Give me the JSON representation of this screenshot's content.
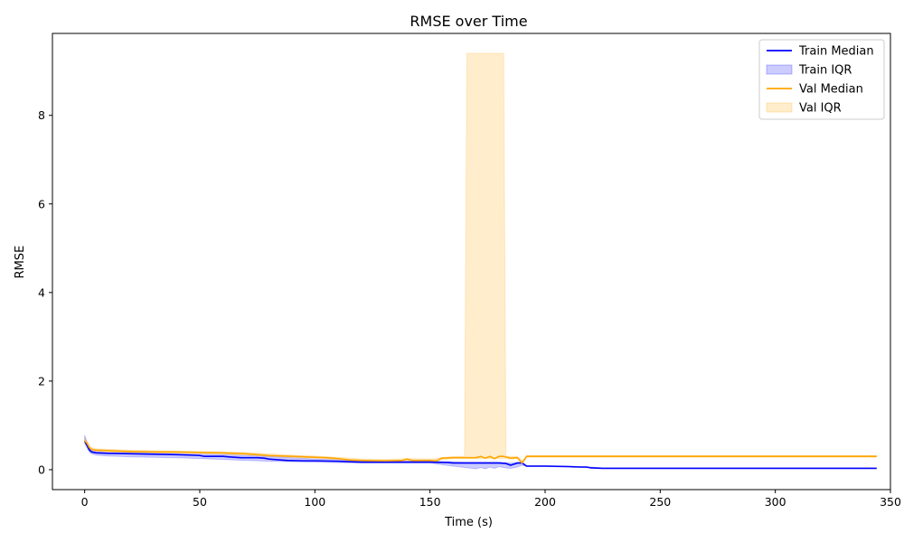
{
  "chart_data": {
    "type": "line",
    "title": "RMSE over Time",
    "xlabel": "Time (s)",
    "ylabel": "RMSE",
    "xlim": [
      -14,
      350
    ],
    "ylim": [
      -0.45,
      9.85
    ],
    "xticks": [
      0,
      50,
      100,
      150,
      200,
      250,
      300,
      350
    ],
    "yticks": [
      0,
      2,
      4,
      6,
      8
    ],
    "grid": false,
    "legend_position": "top-right",
    "series": [
      {
        "name": "Train Median",
        "kind": "line",
        "color": "#0000ff",
        "x": [
          0,
          1,
          2,
          3,
          5,
          10,
          20,
          30,
          40,
          45,
          50,
          52,
          60,
          65,
          68,
          75,
          78,
          80,
          85,
          88,
          95,
          100,
          110,
          115,
          120,
          125,
          130,
          138,
          140,
          150,
          158,
          160,
          165,
          170,
          175,
          180,
          183,
          185,
          188,
          190,
          192,
          200,
          210,
          215,
          218,
          220,
          225,
          250,
          300,
          344
        ],
        "y": [
          0.65,
          0.55,
          0.45,
          0.4,
          0.38,
          0.37,
          0.36,
          0.35,
          0.34,
          0.33,
          0.32,
          0.3,
          0.3,
          0.28,
          0.27,
          0.27,
          0.26,
          0.24,
          0.22,
          0.21,
          0.2,
          0.2,
          0.19,
          0.18,
          0.17,
          0.17,
          0.17,
          0.17,
          0.17,
          0.17,
          0.16,
          0.15,
          0.15,
          0.15,
          0.15,
          0.15,
          0.14,
          0.1,
          0.15,
          0.15,
          0.08,
          0.08,
          0.07,
          0.06,
          0.06,
          0.04,
          0.03,
          0.03,
          0.03,
          0.03
        ]
      },
      {
        "name": "Train IQR",
        "kind": "band",
        "color": "#0000ff",
        "x": [
          0,
          1,
          2,
          3,
          5,
          10,
          20,
          30,
          40,
          50,
          60,
          70,
          80,
          90,
          100,
          110,
          120,
          130,
          140,
          150,
          160,
          165,
          170,
          172,
          174,
          176,
          178,
          180,
          183,
          185,
          188,
          190,
          192,
          200,
          210,
          220,
          225,
          250,
          300,
          344
        ],
        "lower": [
          0.6,
          0.5,
          0.4,
          0.36,
          0.33,
          0.31,
          0.29,
          0.28,
          0.27,
          0.25,
          0.23,
          0.21,
          0.19,
          0.18,
          0.17,
          0.16,
          0.15,
          0.15,
          0.15,
          0.15,
          0.08,
          0.05,
          0.02,
          0.05,
          0.02,
          0.06,
          0.03,
          0.07,
          0.04,
          0.03,
          0.06,
          0.1,
          0.07,
          0.07,
          0.06,
          0.04,
          0.03,
          0.03,
          0.03,
          0.03
        ],
        "upper": [
          0.78,
          0.62,
          0.5,
          0.44,
          0.41,
          0.39,
          0.38,
          0.37,
          0.36,
          0.35,
          0.34,
          0.32,
          0.3,
          0.27,
          0.24,
          0.22,
          0.2,
          0.19,
          0.19,
          0.19,
          0.18,
          0.17,
          0.17,
          0.17,
          0.17,
          0.17,
          0.17,
          0.17,
          0.16,
          0.15,
          0.17,
          0.16,
          0.09,
          0.09,
          0.08,
          0.06,
          0.04,
          0.04,
          0.04,
          0.04
        ]
      },
      {
        "name": "Val Median",
        "kind": "line",
        "color": "#ffa500",
        "x": [
          0,
          1,
          2,
          3,
          5,
          10,
          20,
          30,
          40,
          50,
          60,
          65,
          70,
          75,
          80,
          90,
          100,
          105,
          110,
          115,
          120,
          130,
          138,
          140,
          142,
          150,
          153,
          155,
          160,
          165,
          170,
          172,
          174,
          176,
          178,
          180,
          182,
          185,
          188,
          190,
          192,
          200,
          220,
          250,
          300,
          344
        ],
        "y": [
          0.65,
          0.6,
          0.5,
          0.46,
          0.44,
          0.43,
          0.41,
          0.4,
          0.4,
          0.39,
          0.38,
          0.37,
          0.36,
          0.34,
          0.32,
          0.3,
          0.28,
          0.27,
          0.25,
          0.22,
          0.21,
          0.2,
          0.21,
          0.24,
          0.21,
          0.21,
          0.2,
          0.26,
          0.27,
          0.27,
          0.27,
          0.3,
          0.26,
          0.3,
          0.25,
          0.3,
          0.3,
          0.26,
          0.27,
          0.15,
          0.3,
          0.3,
          0.3,
          0.3,
          0.3,
          0.3
        ]
      },
      {
        "name": "Val IQR",
        "kind": "band",
        "color": "#ffa500",
        "x": [
          0,
          1,
          2,
          3,
          5,
          10,
          20,
          30,
          40,
          50,
          60,
          70,
          80,
          90,
          100,
          110,
          120,
          130,
          140,
          150,
          160,
          165,
          166,
          182,
          183,
          185,
          188,
          190,
          192,
          200,
          220,
          250,
          300,
          344
        ],
        "lower": [
          0.6,
          0.55,
          0.45,
          0.42,
          0.41,
          0.4,
          0.39,
          0.38,
          0.37,
          0.36,
          0.35,
          0.33,
          0.3,
          0.28,
          0.26,
          0.23,
          0.19,
          0.18,
          0.19,
          0.19,
          0.25,
          0.25,
          0.25,
          0.25,
          0.25,
          0.24,
          0.25,
          0.15,
          0.28,
          0.28,
          0.28,
          0.28,
          0.28,
          0.28
        ],
        "upper": [
          0.72,
          0.65,
          0.55,
          0.5,
          0.47,
          0.46,
          0.44,
          0.43,
          0.42,
          0.41,
          0.4,
          0.39,
          0.36,
          0.33,
          0.31,
          0.28,
          0.24,
          0.23,
          0.25,
          0.24,
          0.3,
          0.3,
          9.4,
          9.4,
          0.3,
          0.3,
          0.3,
          0.2,
          0.32,
          0.32,
          0.32,
          0.32,
          0.32,
          0.32
        ]
      }
    ]
  }
}
